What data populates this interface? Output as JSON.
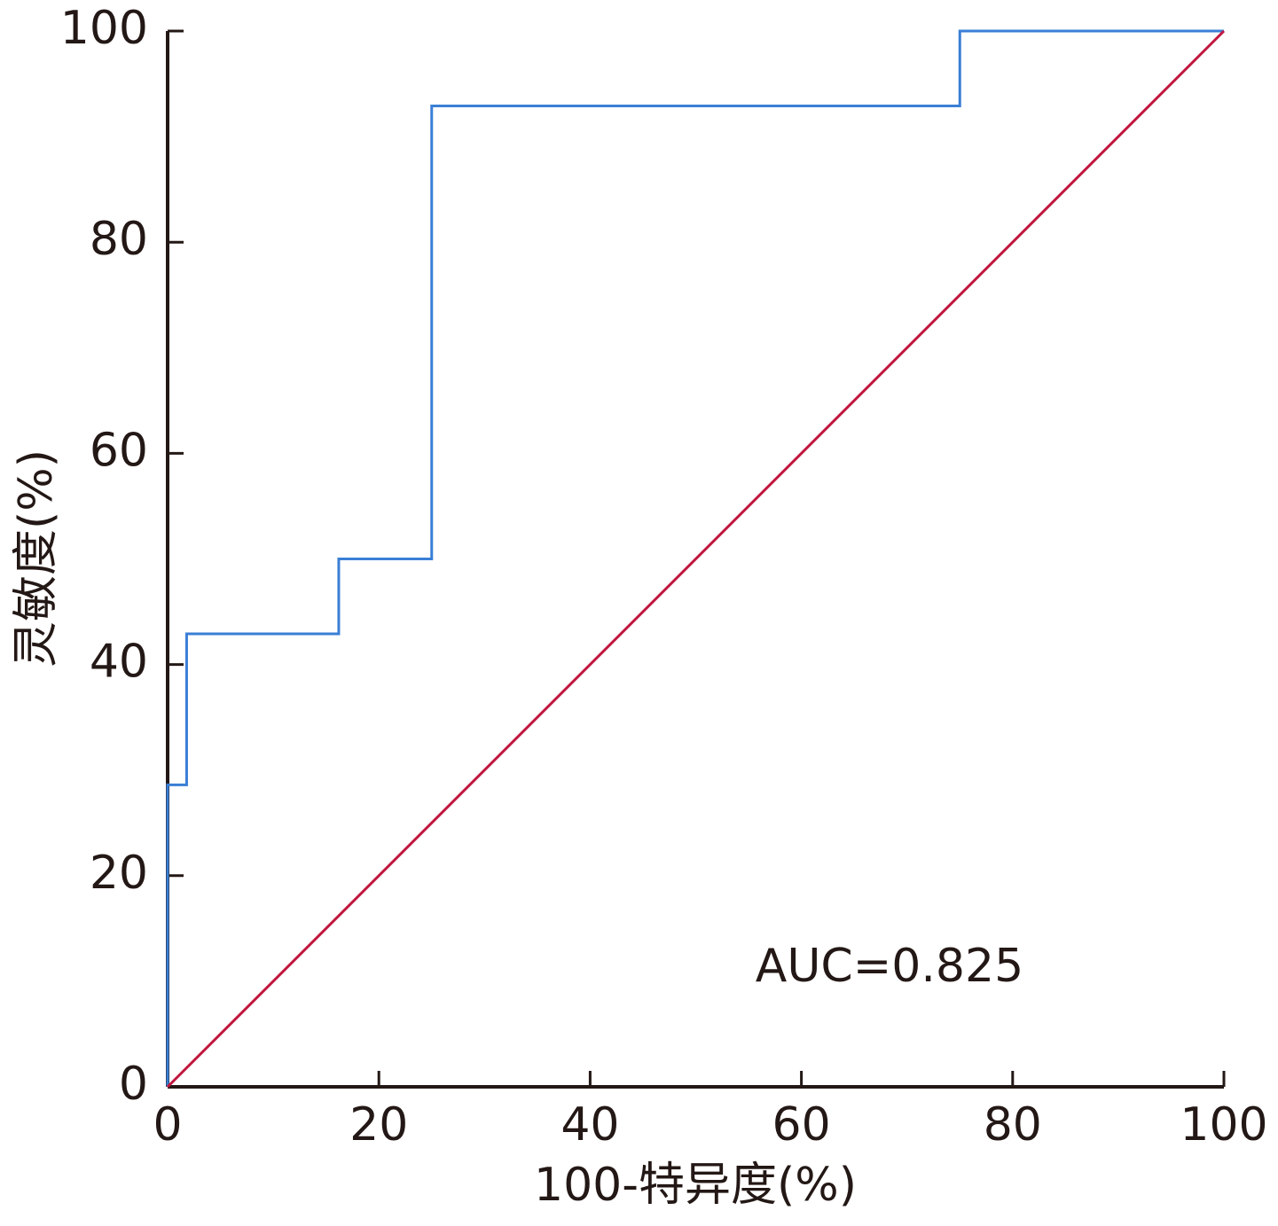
{
  "chart_data": {
    "type": "line",
    "xlabel": "100-特异度(%)",
    "ylabel": "灵敏度(%)",
    "annotation": "AUC=0.825",
    "step": true,
    "series": [
      {
        "color": "#3a7fd6",
        "x": [
          0,
          0,
          1.8,
          1.8,
          16.2,
          16.2,
          25,
          25,
          75,
          75,
          100
        ],
        "values": [
          0,
          28.6,
          28.6,
          42.9,
          42.9,
          50,
          50,
          92.9,
          92.9,
          100,
          100
        ]
      },
      {
        "color": "#c0163e",
        "x": [
          0,
          100
        ],
        "values": [
          0,
          100
        ]
      }
    ],
    "xlim": [
      0,
      100
    ],
    "xticks": [
      0,
      20,
      40,
      60,
      80,
      100
    ],
    "ylim": [
      0,
      100
    ],
    "yticks": [
      0,
      20,
      40,
      60,
      80,
      100
    ],
    "grid": false
  }
}
